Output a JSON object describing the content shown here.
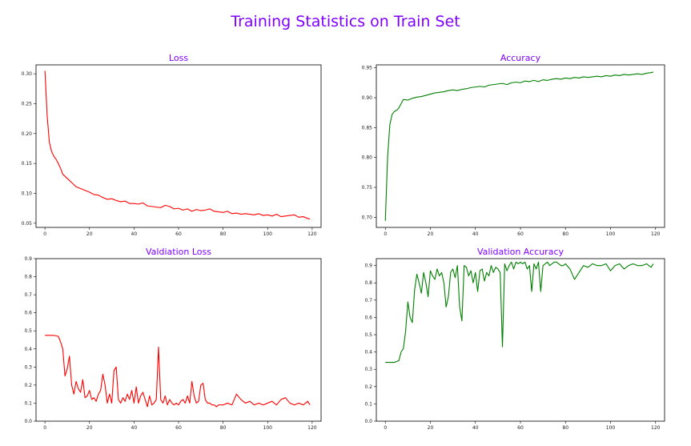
{
  "suptitle": "Training Statistics on Train Set",
  "chart_data": [
    {
      "type": "line",
      "title": "Loss",
      "color": "#ff0000",
      "xlim": [
        -4,
        124
      ],
      "ylim": [
        0.043,
        0.315
      ],
      "xticks": [
        0,
        20,
        40,
        60,
        80,
        100,
        120
      ],
      "xtick_labels": [
        "0",
        "20",
        "40",
        "60",
        "80",
        "100",
        "120"
      ],
      "yticks": [
        0.05,
        0.1,
        0.15,
        0.2,
        0.25,
        0.3
      ],
      "ytick_labels": [
        "0.05",
        "0.10",
        "0.15",
        "0.20",
        "0.25",
        "0.30"
      ],
      "grid": false,
      "x": [
        0,
        1,
        2,
        3,
        4,
        5,
        6,
        7,
        8,
        10,
        12,
        14,
        16,
        18,
        20,
        22,
        24,
        26,
        28,
        30,
        32,
        34,
        36,
        38,
        40,
        42,
        44,
        46,
        48,
        50,
        52,
        54,
        56,
        58,
        60,
        62,
        64,
        66,
        68,
        70,
        72,
        74,
        76,
        78,
        80,
        82,
        84,
        86,
        88,
        90,
        92,
        94,
        96,
        98,
        100,
        102,
        104,
        106,
        108,
        110,
        112,
        114,
        116,
        118,
        119
      ],
      "y": [
        0.305,
        0.23,
        0.185,
        0.17,
        0.162,
        0.157,
        0.15,
        0.142,
        0.132,
        0.125,
        0.118,
        0.111,
        0.108,
        0.105,
        0.102,
        0.098,
        0.097,
        0.093,
        0.09,
        0.091,
        0.088,
        0.086,
        0.087,
        0.083,
        0.083,
        0.082,
        0.084,
        0.079,
        0.078,
        0.077,
        0.076,
        0.08,
        0.078,
        0.074,
        0.075,
        0.072,
        0.074,
        0.07,
        0.073,
        0.071,
        0.072,
        0.074,
        0.07,
        0.069,
        0.068,
        0.07,
        0.066,
        0.067,
        0.065,
        0.066,
        0.065,
        0.064,
        0.066,
        0.063,
        0.064,
        0.062,
        0.065,
        0.061,
        0.062,
        0.063,
        0.064,
        0.06,
        0.061,
        0.058,
        0.057
      ]
    },
    {
      "type": "line",
      "title": "Accuracy",
      "color": "#008000",
      "xlim": [
        -4,
        124
      ],
      "ylim": [
        0.683,
        0.955
      ],
      "xticks": [
        0,
        20,
        40,
        60,
        80,
        100,
        120
      ],
      "xtick_labels": [
        "0",
        "20",
        "40",
        "60",
        "80",
        "100",
        "120"
      ],
      "yticks": [
        0.7,
        0.75,
        0.8,
        0.85,
        0.9,
        0.95
      ],
      "ytick_labels": [
        "0.70",
        "0.75",
        "0.80",
        "0.85",
        "0.90",
        "0.95"
      ],
      "grid": false,
      "x": [
        0,
        1,
        2,
        3,
        4,
        5,
        6,
        7,
        8,
        10,
        12,
        14,
        16,
        18,
        20,
        22,
        24,
        26,
        28,
        30,
        32,
        34,
        36,
        38,
        40,
        42,
        44,
        46,
        48,
        50,
        52,
        54,
        56,
        58,
        60,
        62,
        64,
        66,
        68,
        70,
        72,
        74,
        76,
        78,
        80,
        82,
        84,
        86,
        88,
        90,
        92,
        94,
        96,
        98,
        100,
        102,
        104,
        106,
        108,
        110,
        112,
        114,
        116,
        118,
        119
      ],
      "y": [
        0.694,
        0.8,
        0.855,
        0.872,
        0.877,
        0.879,
        0.883,
        0.89,
        0.897,
        0.896,
        0.899,
        0.901,
        0.902,
        0.904,
        0.906,
        0.908,
        0.909,
        0.91,
        0.912,
        0.913,
        0.912,
        0.914,
        0.915,
        0.917,
        0.918,
        0.919,
        0.918,
        0.921,
        0.922,
        0.923,
        0.924,
        0.922,
        0.925,
        0.926,
        0.925,
        0.928,
        0.927,
        0.929,
        0.927,
        0.93,
        0.929,
        0.931,
        0.932,
        0.931,
        0.933,
        0.932,
        0.934,
        0.933,
        0.935,
        0.934,
        0.935,
        0.936,
        0.935,
        0.937,
        0.936,
        0.938,
        0.937,
        0.939,
        0.938,
        0.939,
        0.94,
        0.939,
        0.941,
        0.942,
        0.943
      ]
    },
    {
      "type": "line",
      "title": "Valdiation Loss",
      "color": "#ff0000",
      "xlim": [
        -4,
        124
      ],
      "ylim": [
        0.0,
        0.9
      ],
      "xticks": [
        0,
        20,
        40,
        60,
        80,
        100,
        120
      ],
      "xtick_labels": [
        "0",
        "20",
        "40",
        "60",
        "80",
        "100",
        "120"
      ],
      "yticks": [
        0.0,
        0.1,
        0.2,
        0.3,
        0.4,
        0.5,
        0.6,
        0.7,
        0.8,
        0.9
      ],
      "ytick_labels": [
        "0.0",
        "0.1",
        "0.2",
        "0.3",
        "0.4",
        "0.5",
        "0.6",
        "0.7",
        "0.8",
        "0.9"
      ],
      "grid": false,
      "x": [
        0,
        2,
        4,
        6,
        7,
        8,
        9,
        10,
        11,
        12,
        13,
        14,
        15,
        16,
        17,
        18,
        19,
        20,
        21,
        22,
        23,
        24,
        25,
        26,
        27,
        28,
        29,
        30,
        31,
        32,
        33,
        34,
        35,
        36,
        37,
        38,
        39,
        40,
        41,
        42,
        43,
        44,
        45,
        46,
        47,
        48,
        49,
        50,
        51,
        52,
        53,
        54,
        55,
        56,
        57,
        58,
        59,
        60,
        61,
        62,
        63,
        64,
        65,
        66,
        67,
        68,
        69,
        70,
        71,
        72,
        73,
        74,
        75,
        76,
        77,
        78,
        79,
        80,
        82,
        84,
        86,
        88,
        90,
        92,
        94,
        96,
        98,
        100,
        102,
        104,
        106,
        108,
        110,
        112,
        114,
        116,
        118,
        119
      ],
      "y": [
        0.475,
        0.475,
        0.475,
        0.47,
        0.44,
        0.4,
        0.25,
        0.29,
        0.36,
        0.2,
        0.15,
        0.22,
        0.18,
        0.16,
        0.23,
        0.13,
        0.14,
        0.17,
        0.12,
        0.13,
        0.11,
        0.15,
        0.17,
        0.26,
        0.2,
        0.1,
        0.15,
        0.1,
        0.28,
        0.3,
        0.12,
        0.1,
        0.13,
        0.11,
        0.15,
        0.12,
        0.17,
        0.1,
        0.19,
        0.1,
        0.14,
        0.16,
        0.12,
        0.08,
        0.14,
        0.09,
        0.1,
        0.12,
        0.41,
        0.12,
        0.1,
        0.14,
        0.09,
        0.12,
        0.1,
        0.09,
        0.1,
        0.09,
        0.11,
        0.12,
        0.1,
        0.14,
        0.1,
        0.22,
        0.14,
        0.1,
        0.11,
        0.2,
        0.21,
        0.12,
        0.1,
        0.1,
        0.09,
        0.09,
        0.08,
        0.09,
        0.09,
        0.09,
        0.1,
        0.09,
        0.15,
        0.12,
        0.1,
        0.11,
        0.09,
        0.1,
        0.09,
        0.1,
        0.11,
        0.09,
        0.12,
        0.13,
        0.1,
        0.09,
        0.1,
        0.09,
        0.11,
        0.09
      ]
    },
    {
      "type": "line",
      "title": "Validation Accuracy",
      "color": "#008000",
      "xlim": [
        -4,
        124
      ],
      "ylim": [
        0.0,
        0.94
      ],
      "xticks": [
        0,
        20,
        40,
        60,
        80,
        100,
        120
      ],
      "xtick_labels": [
        "0",
        "20",
        "40",
        "60",
        "80",
        "100",
        "120"
      ],
      "yticks": [
        0.0,
        0.1,
        0.2,
        0.3,
        0.4,
        0.5,
        0.6,
        0.7,
        0.8,
        0.9
      ],
      "ytick_labels": [
        "0.0",
        "0.1",
        "0.2",
        "0.3",
        "0.4",
        "0.5",
        "0.6",
        "0.7",
        "0.8",
        "0.9"
      ],
      "grid": false,
      "x": [
        0,
        2,
        4,
        6,
        7,
        8,
        9,
        10,
        11,
        12,
        13,
        14,
        15,
        16,
        17,
        18,
        19,
        20,
        21,
        22,
        23,
        24,
        25,
        26,
        27,
        28,
        29,
        30,
        31,
        32,
        33,
        34,
        35,
        36,
        37,
        38,
        39,
        40,
        41,
        42,
        43,
        44,
        45,
        46,
        47,
        48,
        49,
        50,
        51,
        52,
        53,
        54,
        55,
        56,
        57,
        58,
        59,
        60,
        61,
        62,
        63,
        64,
        65,
        66,
        67,
        68,
        69,
        70,
        71,
        72,
        73,
        74,
        75,
        76,
        77,
        78,
        79,
        80,
        82,
        84,
        86,
        88,
        90,
        92,
        94,
        96,
        98,
        100,
        102,
        104,
        106,
        108,
        110,
        112,
        114,
        116,
        118,
        119
      ],
      "y": [
        0.34,
        0.34,
        0.34,
        0.35,
        0.4,
        0.42,
        0.52,
        0.69,
        0.6,
        0.57,
        0.76,
        0.85,
        0.8,
        0.74,
        0.86,
        0.8,
        0.72,
        0.87,
        0.84,
        0.82,
        0.88,
        0.84,
        0.86,
        0.8,
        0.66,
        0.72,
        0.86,
        0.88,
        0.83,
        0.9,
        0.66,
        0.58,
        0.9,
        0.89,
        0.84,
        0.87,
        0.8,
        0.86,
        0.75,
        0.87,
        0.88,
        0.81,
        0.86,
        0.84,
        0.9,
        0.86,
        0.89,
        0.88,
        0.86,
        0.43,
        0.91,
        0.87,
        0.9,
        0.92,
        0.88,
        0.92,
        0.91,
        0.92,
        0.91,
        0.92,
        0.88,
        0.9,
        0.75,
        0.91,
        0.88,
        0.92,
        0.75,
        0.9,
        0.91,
        0.92,
        0.9,
        0.91,
        0.92,
        0.92,
        0.91,
        0.9,
        0.9,
        0.91,
        0.88,
        0.82,
        0.86,
        0.9,
        0.89,
        0.91,
        0.9,
        0.9,
        0.91,
        0.87,
        0.9,
        0.91,
        0.88,
        0.9,
        0.91,
        0.9,
        0.9,
        0.91,
        0.89,
        0.91
      ]
    }
  ]
}
